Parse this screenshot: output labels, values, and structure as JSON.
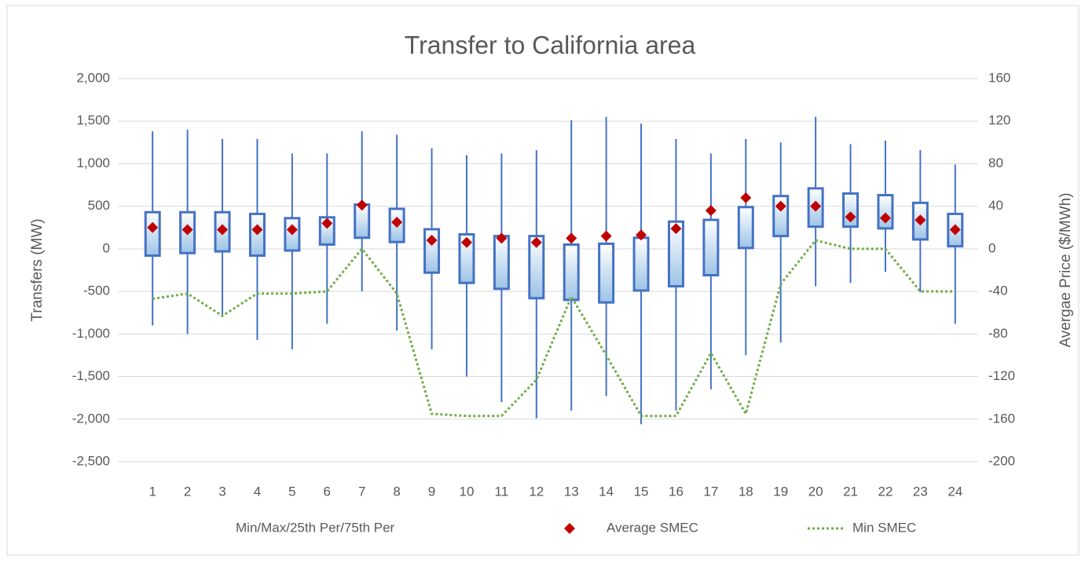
{
  "chart_data": {
    "type": "box",
    "title": "Transfer to California area",
    "y_label": "Transfers (MW)",
    "y2_label": "Avergae  Price ($/MWh)",
    "categories": [
      "1",
      "2",
      "3",
      "4",
      "5",
      "6",
      "7",
      "8",
      "9",
      "10",
      "11",
      "12",
      "13",
      "14",
      "15",
      "16",
      "17",
      "18",
      "19",
      "20",
      "21",
      "22",
      "23",
      "24"
    ],
    "ylim": [
      -2500,
      2000
    ],
    "yticks": [
      {
        "value": 2000,
        "label": "2,000"
      },
      {
        "value": 1500,
        "label": "1,500"
      },
      {
        "value": 1000,
        "label": "1,000"
      },
      500,
      0,
      -500,
      {
        "value": -1000,
        "label": "-1,000"
      },
      {
        "value": -1500,
        "label": "-1,500"
      },
      {
        "value": -2000,
        "label": "-2,000"
      },
      {
        "value": -2500,
        "label": "-2,500"
      }
    ],
    "y2lim": [
      -200,
      160
    ],
    "y2ticks": [
      160,
      120,
      80,
      40,
      0,
      -40,
      -80,
      -120,
      -160,
      -200
    ],
    "grid": true,
    "legend": "bottom",
    "series": [
      {
        "name": "Min/Max/25th Per/75th Per",
        "color": "#4472c4",
        "min": [
          -900,
          -1000,
          -780,
          -1070,
          -1180,
          -880,
          -500,
          -960,
          -1180,
          -1500,
          -1800,
          -1990,
          -1900,
          -1730,
          -2060,
          -1900,
          -1650,
          -1250,
          -1100,
          -440,
          -400,
          -270,
          -510,
          -880
        ],
        "q1": [
          -80,
          -50,
          -30,
          -80,
          -20,
          50,
          130,
          80,
          -280,
          -400,
          -470,
          -580,
          -600,
          -630,
          -490,
          -440,
          -310,
          10,
          150,
          260,
          260,
          240,
          110,
          30
        ],
        "q3": [
          430,
          430,
          430,
          410,
          360,
          370,
          520,
          470,
          230,
          170,
          150,
          150,
          50,
          60,
          130,
          320,
          340,
          490,
          620,
          710,
          650,
          630,
          540,
          410
        ],
        "max": [
          1380,
          1400,
          1290,
          1290,
          1120,
          1120,
          1380,
          1340,
          1180,
          1100,
          1120,
          1160,
          1510,
          1550,
          1470,
          1290,
          1120,
          1290,
          1250,
          1550,
          1230,
          1270,
          1160,
          990
        ]
      },
      {
        "name": "Average SMEC",
        "color": "#c00000",
        "axis": "y2",
        "values": [
          20,
          18,
          18,
          18,
          18,
          24,
          41,
          25,
          8,
          6,
          10,
          6,
          10,
          12,
          13,
          19,
          36,
          48,
          40,
          40,
          30,
          29,
          27,
          18
        ]
      },
      {
        "name": "Min SMEC",
        "color": "#70ad47",
        "axis": "y2",
        "values": [
          -47,
          -42,
          -63,
          -42,
          -42,
          -40,
          0,
          -42,
          -155,
          -157,
          -157,
          -123,
          -45,
          -100,
          -157,
          -157,
          -98,
          -155,
          -33,
          8,
          0,
          0,
          -40,
          -40
        ]
      }
    ]
  }
}
